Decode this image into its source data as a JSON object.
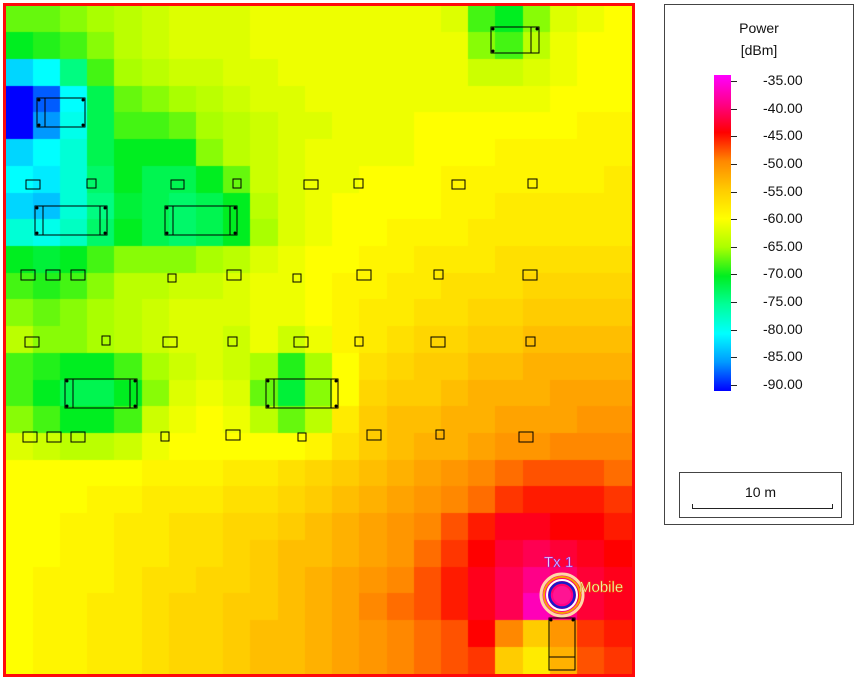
{
  "map": {
    "transmitter_label": "Tx 1",
    "mobile_label": "Mobile",
    "border_color": "#ff0a0a",
    "grid_columns": 23,
    "grid_rows": 25,
    "power_grid_dbm": [
      [
        -67,
        -67,
        -66,
        -65,
        -64,
        -63,
        -62,
        -62,
        -62,
        -61,
        -61,
        -61,
        -61,
        -61,
        -61,
        -61,
        -62,
        -68,
        -70,
        -66,
        -62,
        -61,
        -60
      ],
      [
        -70,
        -69,
        -68,
        -66,
        -64,
        -63,
        -62,
        -62,
        -62,
        -61,
        -61,
        -61,
        -61,
        -61,
        -61,
        -61,
        -61,
        -66,
        -68,
        -64,
        -61,
        -60,
        -60
      ],
      [
        -82,
        -80,
        -74,
        -68,
        -65,
        -64,
        -63,
        -63,
        -62,
        -62,
        -61,
        -61,
        -61,
        -61,
        -61,
        -61,
        -61,
        -63,
        -63,
        -62,
        -61,
        -60,
        -60
      ],
      [
        -90,
        -87,
        -80,
        -72,
        -67,
        -66,
        -65,
        -64,
        -63,
        -62,
        -62,
        -61,
        -61,
        -61,
        -61,
        -61,
        -61,
        -61,
        -61,
        -61,
        -60,
        -60,
        -60
      ],
      [
        -90,
        -85,
        -79,
        -72,
        -68,
        -68,
        -67,
        -65,
        -64,
        -63,
        -62,
        -62,
        -61,
        -61,
        -61,
        -60,
        -60,
        -60,
        -60,
        -60,
        -60,
        -59,
        -59
      ],
      [
        -82,
        -80,
        -78,
        -72,
        -70,
        -70,
        -70,
        -66,
        -64,
        -63,
        -62,
        -61,
        -61,
        -61,
        -61,
        -60,
        -60,
        -60,
        -59,
        -59,
        -59,
        -59,
        -59
      ],
      [
        -80,
        -81,
        -78,
        -73,
        -70,
        -72,
        -72,
        -70,
        -67,
        -63,
        -62,
        -61,
        -61,
        -60,
        -60,
        -60,
        -59,
        -59,
        -59,
        -59,
        -59,
        -59,
        -58
      ],
      [
        -82,
        -83,
        -78,
        -74,
        -71,
        -72,
        -73,
        -72,
        -70,
        -64,
        -62,
        -61,
        -60,
        -60,
        -60,
        -60,
        -59,
        -59,
        -58,
        -58,
        -58,
        -58,
        -58
      ],
      [
        -78,
        -79,
        -77,
        -73,
        -70,
        -72,
        -73,
        -72,
        -70,
        -65,
        -62,
        -61,
        -60,
        -60,
        -59,
        -59,
        -59,
        -58,
        -58,
        -58,
        -58,
        -58,
        -58
      ],
      [
        -70,
        -71,
        -70,
        -68,
        -66,
        -66,
        -66,
        -65,
        -64,
        -62,
        -61,
        -60,
        -60,
        -59,
        -59,
        -58,
        -58,
        -58,
        -57,
        -57,
        -57,
        -57,
        -57
      ],
      [
        -68,
        -69,
        -68,
        -66,
        -64,
        -64,
        -63,
        -63,
        -62,
        -61,
        -61,
        -60,
        -59,
        -59,
        -58,
        -58,
        -57,
        -57,
        -57,
        -56,
        -56,
        -56,
        -56
      ],
      [
        -66,
        -67,
        -66,
        -65,
        -64,
        -63,
        -62,
        -62,
        -62,
        -61,
        -61,
        -60,
        -59,
        -58,
        -58,
        -57,
        -57,
        -56,
        -56,
        -55,
        -55,
        -55,
        -55
      ],
      [
        -64,
        -66,
        -66,
        -65,
        -64,
        -63,
        -62,
        -62,
        -63,
        -61,
        -63,
        -61,
        -59,
        -58,
        -57,
        -56,
        -56,
        -55,
        -55,
        -54,
        -54,
        -54,
        -54
      ],
      [
        -68,
        -69,
        -70,
        -70,
        -68,
        -65,
        -63,
        -62,
        -63,
        -65,
        -69,
        -65,
        -60,
        -57,
        -56,
        -55,
        -55,
        -54,
        -54,
        -53,
        -53,
        -53,
        -53
      ],
      [
        -68,
        -70,
        -72,
        -72,
        -70,
        -66,
        -62,
        -61,
        -62,
        -67,
        -71,
        -66,
        -60,
        -56,
        -55,
        -55,
        -54,
        -53,
        -53,
        -53,
        -52,
        -52,
        -52
      ],
      [
        -66,
        -68,
        -70,
        -70,
        -68,
        -63,
        -61,
        -60,
        -61,
        -64,
        -67,
        -64,
        -58,
        -55,
        -54,
        -54,
        -53,
        -53,
        -52,
        -52,
        -52,
        -51,
        -51
      ],
      [
        -62,
        -63,
        -64,
        -64,
        -63,
        -61,
        -60,
        -60,
        -60,
        -60,
        -60,
        -59,
        -57,
        -55,
        -54,
        -53,
        -53,
        -52,
        -51,
        -51,
        -50,
        -50,
        -50
      ],
      [
        -60,
        -60,
        -60,
        -60,
        -60,
        -59,
        -59,
        -59,
        -58,
        -58,
        -57,
        -56,
        -55,
        -54,
        -53,
        -52,
        -51,
        -50,
        -49,
        -48,
        -48,
        -48,
        -49
      ],
      [
        -60,
        -60,
        -60,
        -59,
        -59,
        -58,
        -58,
        -58,
        -57,
        -57,
        -56,
        -55,
        -54,
        -53,
        -52,
        -51,
        -50,
        -49,
        -47,
        -46,
        -46,
        -46,
        -47
      ],
      [
        -60,
        -60,
        -59,
        -59,
        -58,
        -58,
        -57,
        -57,
        -56,
        -56,
        -55,
        -54,
        -53,
        -52,
        -51,
        -50,
        -48,
        -46,
        -44,
        -44,
        -45,
        -45,
        -46
      ],
      [
        -60,
        -60,
        -59,
        -59,
        -58,
        -58,
        -57,
        -57,
        -56,
        -55,
        -54,
        -54,
        -53,
        -52,
        -51,
        -49,
        -47,
        -45,
        -43,
        -42,
        -43,
        -44,
        -45
      ],
      [
        -60,
        -59,
        -59,
        -59,
        -58,
        -57,
        -57,
        -56,
        -56,
        -55,
        -54,
        -53,
        -52,
        -51,
        -50,
        -48,
        -46,
        -44,
        -42,
        -40,
        -41,
        -43,
        -44
      ],
      [
        -60,
        -59,
        -59,
        -58,
        -58,
        -57,
        -56,
        -56,
        -55,
        -55,
        -54,
        -53,
        -52,
        -50,
        -49,
        -48,
        -46,
        -44,
        -42,
        -38,
        -40,
        -43,
        -44
      ],
      [
        -60,
        -59,
        -59,
        -58,
        -58,
        -57,
        -56,
        -56,
        -55,
        -54,
        -54,
        -53,
        -52,
        -51,
        -50,
        -49,
        -48,
        -45,
        -50,
        -55,
        -51,
        -47,
        -46
      ],
      [
        -60,
        -59,
        -59,
        -58,
        -58,
        -57,
        -56,
        -56,
        -55,
        -54,
        -54,
        -53,
        -52,
        -51,
        -50,
        -49,
        -48,
        -47,
        -55,
        -58,
        -53,
        -48,
        -47
      ]
    ]
  },
  "legend": {
    "title": "Power",
    "unit": "[dBm]",
    "ticks": [
      "-35.00",
      "-40.00",
      "-45.00",
      "-50.00",
      "-55.00",
      "-60.00",
      "-65.00",
      "-70.00",
      "-75.00",
      "-80.00",
      "-85.00",
      "-90.00"
    ],
    "colorscale": [
      {
        "value": -35,
        "color": "#ff00ff"
      },
      {
        "value": -40,
        "color": "#ff0088"
      },
      {
        "value": -45,
        "color": "#ff0000"
      },
      {
        "value": -50,
        "color": "#ff8800"
      },
      {
        "value": -55,
        "color": "#ffcc00"
      },
      {
        "value": -60,
        "color": "#ffff00"
      },
      {
        "value": -65,
        "color": "#aaff00"
      },
      {
        "value": -70,
        "color": "#00ee20"
      },
      {
        "value": -75,
        "color": "#00ff99"
      },
      {
        "value": -80,
        "color": "#00ffff"
      },
      {
        "value": -85,
        "color": "#0099ff"
      },
      {
        "value": -90,
        "color": "#0000ff"
      }
    ]
  },
  "scale": {
    "label": "10 m"
  }
}
